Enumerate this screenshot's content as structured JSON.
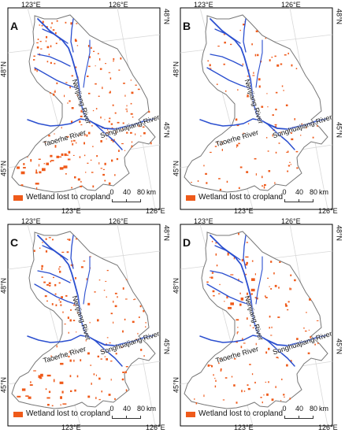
{
  "colors": {
    "wetland_loss": "#ef5a1a",
    "river": "#2b4fcf",
    "boundary": "#777777",
    "graticule": "#d8d8d8"
  },
  "figure": {
    "panels": [
      {
        "id": "A",
        "density": 0.88
      },
      {
        "id": "B",
        "density": 0.48
      },
      {
        "id": "C",
        "density": 0.68
      },
      {
        "id": "D",
        "density": 0.58
      }
    ]
  },
  "axes": {
    "lon1": "123°E",
    "lon2": "126°E",
    "lat1": "48°N",
    "lat2": "45°N"
  },
  "rivers": {
    "nenjiang": "Nenjiang River",
    "songhuajiang": "Songhuajiang River",
    "taoerhe": "Taoerhe River"
  },
  "legend": {
    "label": "Wetland lost to cropland"
  },
  "scalebar": {
    "zero": "0",
    "forty": "40",
    "eighty": "80",
    "unit": "km"
  }
}
